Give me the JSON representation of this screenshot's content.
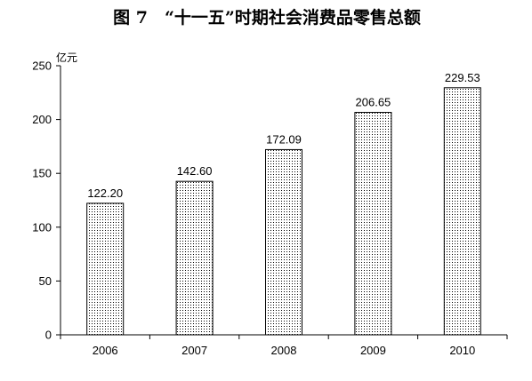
{
  "chart_data": {
    "type": "bar",
    "title": "图 7　“十一五”时期社会消费品零售总额",
    "ylabel": "亿元",
    "xlabel": "",
    "categories": [
      "2006",
      "2007",
      "2008",
      "2009",
      "2010"
    ],
    "values": [
      122.2,
      142.6,
      172.09,
      206.65,
      229.53
    ],
    "data_labels": [
      "122.20",
      "142.60",
      "172.09",
      "206.65",
      "229.53"
    ],
    "ylim": [
      0,
      250
    ],
    "yticks": [
      0,
      50,
      100,
      150,
      200,
      250
    ],
    "ytick_labels": [
      "0",
      "50",
      "100",
      "150",
      "200",
      "250"
    ],
    "grid": false,
    "legend": "none",
    "bar_fill": "dotted",
    "colors": {
      "bar_outline": "#000000",
      "bar_dots": "#000000",
      "axis": "#000000",
      "background": "#ffffff"
    }
  }
}
